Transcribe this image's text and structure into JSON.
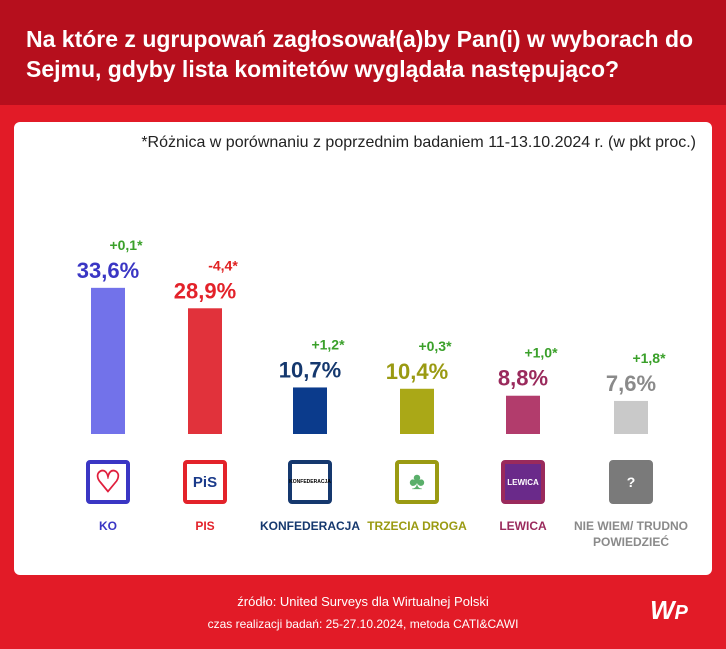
{
  "title": "Na które z ugrupowań zagłosował(a)by Pan(i) w wyborach do Sejmu, gdyby lista komitetów wyglądała następująco?",
  "note": "*Różnica w porównaniu z poprzednim badaniem 11-13.10.2024 r. (w pkt proc.)",
  "chart_data": {
    "type": "bar",
    "categories": [
      "KO",
      "PIS",
      "KONFEDERACJA",
      "TRZECIA DROGA",
      "LEWICA",
      "NIE WIEM/ TRUDNO POWIEDZIEĆ"
    ],
    "values": [
      33.6,
      28.9,
      10.7,
      10.4,
      8.8,
      7.6
    ],
    "value_labels": [
      "33,6%",
      "28,9%",
      "10,7%",
      "10,4%",
      "8,8%",
      "7,6%"
    ],
    "changes": [
      "+0,1*",
      "-4,4*",
      "+1,2*",
      "+0,3*",
      "+1,0*",
      "+1,8*"
    ],
    "change_colors": [
      "#3aa02a",
      "#e02020",
      "#3aa02a",
      "#3aa02a",
      "#3aa02a",
      "#3aa02a"
    ],
    "bar_colors": [
      "#7272ea",
      "#e1323b",
      "#0b3b8c",
      "#aaa817",
      "#b23c6c",
      "#c9c9c9"
    ],
    "label_colors": [
      "#3a36c4",
      "#e3222a",
      "#15386e",
      "#9a9a12",
      "#9a2a5c",
      "#8a8a8a"
    ],
    "logos": [
      "heart-icon",
      "PiS",
      "KONFEDERACJA",
      "clover-icon",
      "LEWICA",
      "?"
    ],
    "ylim": [
      0,
      40
    ],
    "grid": false
  },
  "footer": {
    "source": "źródło: United Surveys dla Wirtualnej Polski",
    "method": "czas realizacji badań: 25-27.10.2024, metoda CATI&CAWI",
    "logo": "WP"
  }
}
